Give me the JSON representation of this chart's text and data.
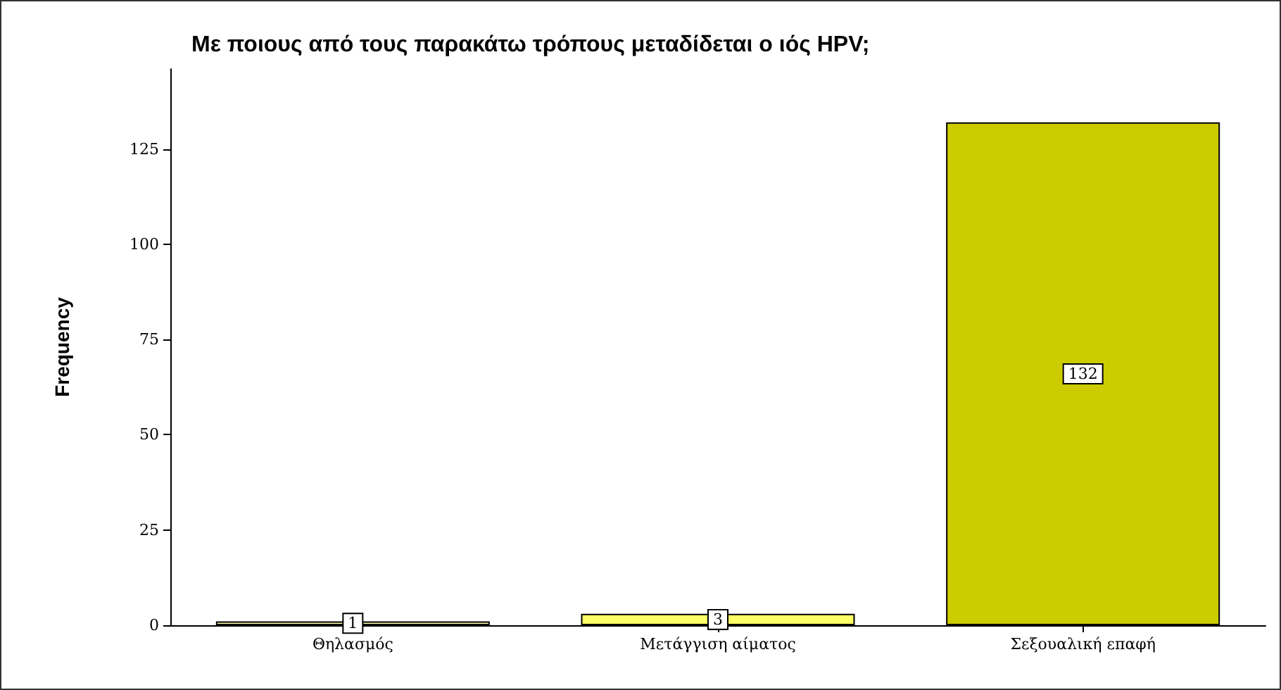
{
  "chart_data": {
    "type": "bar",
    "title": "Με ποιους από τους παρακάτω τρόπους μεταδίδεται ο ιός HPV;",
    "ylabel": "Frequency",
    "categories": [
      "Θηλασμός",
      "Μετάγγιση αίματος",
      "Σεξουαλική επαφή"
    ],
    "values": [
      1,
      3,
      132
    ],
    "colors": [
      "#ffffb0",
      "#ffff66",
      "#cccc00"
    ],
    "ylim": [
      0,
      146
    ],
    "yticks": [
      0,
      25,
      50,
      75,
      100,
      125
    ],
    "grid": false,
    "data_labels": true
  }
}
